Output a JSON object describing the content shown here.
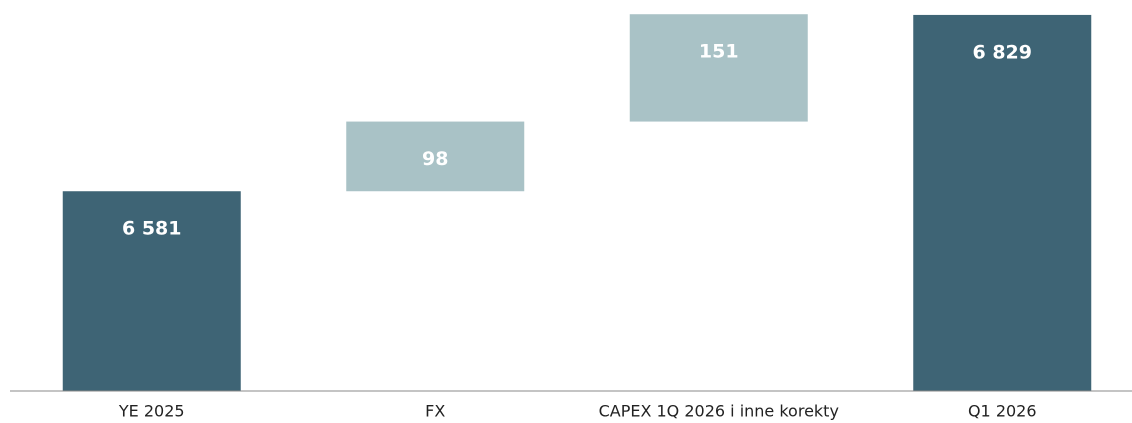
{
  "chart_data": {
    "type": "waterfall",
    "categories": [
      "YE 2025",
      "FX",
      "CAPEX 1Q 2026 i inne korekty",
      "Q1 2026"
    ],
    "values": [
      6581,
      98,
      151,
      6829
    ],
    "value_labels": [
      "6 581",
      "98",
      "151",
      "6 829"
    ],
    "measure": [
      "total",
      "relative",
      "relative",
      "total"
    ],
    "total_color": "#3e6475",
    "delta_color": "#a9c2c6",
    "ylim": [
      6300,
      6850
    ]
  }
}
